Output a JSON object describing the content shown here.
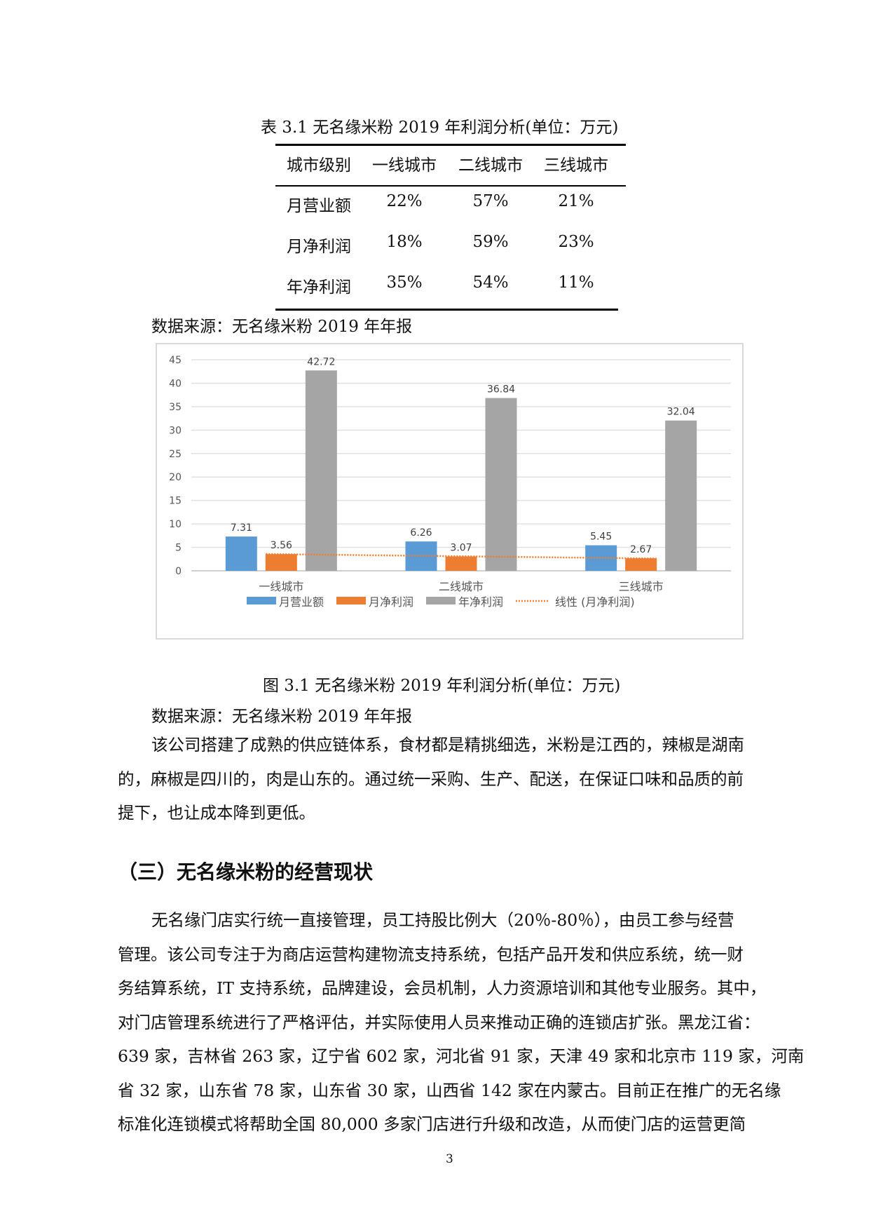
{
  "table": {
    "caption": "表 3.1 无名缘米粉 2019 年利润分析(单位：万元)",
    "headers": [
      "城市级别",
      "一线城市",
      "二线城市",
      "三线城市"
    ],
    "rows": [
      [
        "月营业额",
        "22%",
        "57%",
        "21%"
      ],
      [
        "月净利润",
        "18%",
        "59%",
        "23%"
      ],
      [
        "年净利润",
        "35%",
        "54%",
        "11%"
      ]
    ],
    "source": "数据来源：无名缘米粉 2019 年年报"
  },
  "chart_data": {
    "type": "bar",
    "categories": [
      "一线城市",
      "二线城市",
      "三线城市"
    ],
    "series": [
      {
        "name": "月营业额",
        "values": [
          7.31,
          6.26,
          5.45
        ],
        "color": "#5b9bd5"
      },
      {
        "name": "月净利润",
        "values": [
          3.56,
          3.07,
          2.67
        ],
        "color": "#ed7d31"
      },
      {
        "name": "年净利润",
        "values": [
          42.72,
          36.84,
          32.04
        ],
        "color": "#a5a5a5"
      }
    ],
    "trendline": {
      "name": "线性 (月净利润)",
      "type": "linear",
      "of_series": "月净利润",
      "color": "#ed7d31",
      "style": "dotted"
    },
    "ylim": [
      0,
      45
    ],
    "yticks": [
      0,
      5,
      10,
      15,
      20,
      25,
      30,
      35,
      40,
      45
    ],
    "grid": true,
    "data_labels": true,
    "legend": "bottom"
  },
  "figure": {
    "caption": "图 3.1 无名缘米粉 2019 年利润分析(单位：万元)",
    "source": "数据来源：无名缘米粉 2019 年年报"
  },
  "paragraph1": [
    "该公司搭建了成熟的供应链体系，食材都是精挑细选，米粉是江西的，辣椒是湖南",
    "的，麻椒是四川的，肉是山东的。通过统一采购、生产、配送，在保证口味和品质的前",
    "提下，也让成本降到更低。"
  ],
  "heading": "（三）无名缘米粉的经营现状",
  "paragraph2": [
    "无名缘门店实行统一直接管理，员工持股比例大（20％-80％），由员工参与经营",
    "管理。该公司专注于为商店运营构建物流支持系统，包括产品开发和供应系统，统一财",
    "务结算系统，IT 支持系统，品牌建设，会员机制，人力资源培训和其他专业服务。其中，",
    "对门店管理系统进行了严格评估，并实际使用人员来推动正确的连锁店扩张。黑龙江省：",
    "639 家，吉林省 263 家，辽宁省 602 家，河北省 91 家，天津 49 家和北京市 119 家，河南",
    "省 32 家，山东省 78 家，山东省 30 家，山西省 142 家在内蒙古。目前正在推广的无名缘",
    "标准化连锁模式将帮助全国 80,000 多家门店进行升级和改造，从而使门店的运营更简"
  ],
  "page_number": "3"
}
